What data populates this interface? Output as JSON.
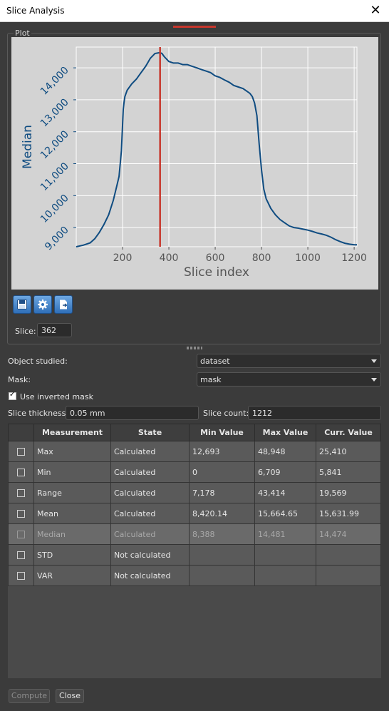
{
  "window": {
    "title": "Slice Analysis",
    "close_glyph": "✕"
  },
  "plot_group": {
    "label": "Plot"
  },
  "chart_data": {
    "type": "line",
    "xlabel": "Slice index",
    "ylabel": "Median",
    "xlim": [
      0,
      1212
    ],
    "ylim": [
      8400,
      14650
    ],
    "xticks": [
      200,
      400,
      600,
      800,
      1000,
      1200
    ],
    "xtick_labels": [
      "200",
      "400",
      "600",
      "800",
      "1000",
      "1200"
    ],
    "yticks": [
      9000,
      10000,
      11000,
      12000,
      13000,
      14000
    ],
    "ytick_labels": [
      "9,000",
      "10,000",
      "11,000",
      "12,000",
      "13,000",
      "14,000"
    ],
    "grid": true,
    "marker_x": 362,
    "line_color": "#0f4c81",
    "marker_color": "#c8372d",
    "series": [
      {
        "x": [
          0,
          30,
          60,
          80,
          100,
          120,
          140,
          160,
          175,
          185,
          195,
          200,
          203,
          206,
          210,
          220,
          240,
          260,
          280,
          300,
          320,
          340,
          355,
          362,
          370,
          380,
          400,
          420,
          440,
          460,
          480,
          500,
          520,
          540,
          560,
          580,
          600,
          620,
          640,
          660,
          680,
          700,
          720,
          740,
          750,
          760,
          770,
          780,
          790,
          800,
          805,
          810,
          820,
          840,
          860,
          880,
          900,
          920,
          940,
          960,
          980,
          1000,
          1020,
          1040,
          1060,
          1080,
          1100,
          1120,
          1140,
          1160,
          1180,
          1200,
          1212
        ],
        "y": [
          8400,
          8450,
          8520,
          8650,
          8850,
          9100,
          9400,
          9850,
          10300,
          10600,
          11400,
          12200,
          12700,
          12900,
          13100,
          13300,
          13500,
          13650,
          13850,
          14050,
          14300,
          14450,
          14470,
          14474,
          14450,
          14350,
          14200,
          14150,
          14150,
          14100,
          14100,
          14050,
          14000,
          13950,
          13900,
          13850,
          13750,
          13700,
          13620,
          13550,
          13450,
          13400,
          13350,
          13250,
          13200,
          13100,
          12900,
          12500,
          11600,
          10800,
          10500,
          10200,
          9900,
          9600,
          9400,
          9250,
          9150,
          9050,
          9000,
          8980,
          8950,
          8920,
          8880,
          8830,
          8800,
          8760,
          8700,
          8620,
          8560,
          8510,
          8480,
          8460,
          8460
        ]
      }
    ]
  },
  "plot_tools": {
    "save": "save-icon",
    "settings": "gear-icon",
    "export": "export-icon"
  },
  "slice": {
    "label": "Slice:",
    "value": "362"
  },
  "form": {
    "object_label": "Object studied:",
    "object_value": "dataset",
    "mask_label": "Mask:",
    "mask_value": "mask",
    "inverted_label": "Use inverted mask",
    "inverted_checked": true,
    "thickness_label": "Slice thickness:",
    "thickness_value": "0.05 mm",
    "count_label": "Slice count:",
    "count_value": "1212"
  },
  "table": {
    "headers": [
      "",
      "Measurement",
      "State",
      "Min Value",
      "Max Value",
      "Curr. Value"
    ],
    "rows": [
      {
        "name": "Max",
        "state": "Calculated",
        "min": "12,693",
        "max": "48,948",
        "curr": "25,410"
      },
      {
        "name": "Min",
        "state": "Calculated",
        "min": "0",
        "max": "6,709",
        "curr": "5,841"
      },
      {
        "name": "Range",
        "state": "Calculated",
        "min": "7,178",
        "max": "43,414",
        "curr": "19,569"
      },
      {
        "name": "Mean",
        "state": "Calculated",
        "min": "8,420.14",
        "max": "15,664.65",
        "curr": "15,631.99"
      },
      {
        "name": "Median",
        "state": "Calculated",
        "min": "8,388",
        "max": "14,481",
        "curr": "14,474"
      },
      {
        "name": "STD",
        "state": "Not calculated",
        "min": "",
        "max": "",
        "curr": ""
      },
      {
        "name": "VAR",
        "state": "Not calculated",
        "min": "",
        "max": "",
        "curr": ""
      }
    ]
  },
  "buttons": {
    "compute": "Compute",
    "close": "Close"
  }
}
